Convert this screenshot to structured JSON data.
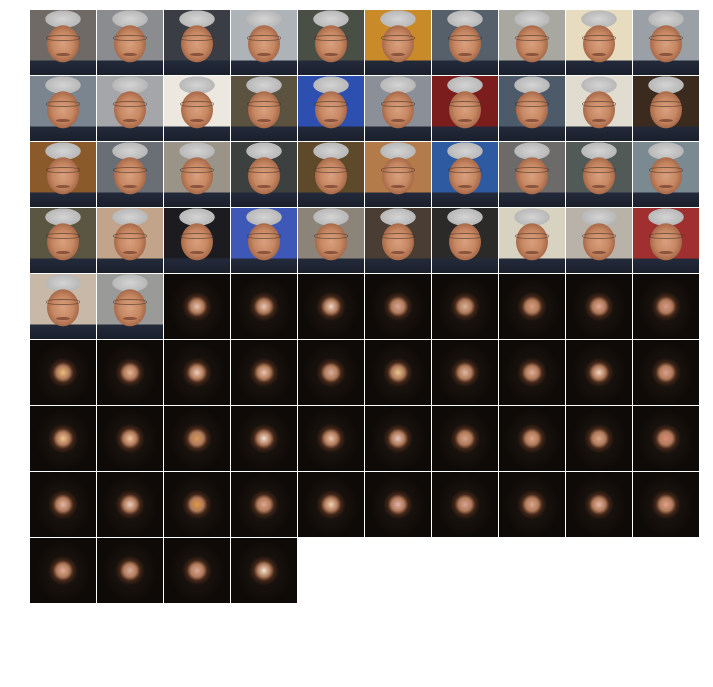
{
  "mosaic": {
    "columns": 10,
    "rows": [
      [
        {
          "kind": "face",
          "bg": "#6f6a66"
        },
        {
          "kind": "face",
          "bg": "#8a8c8f"
        },
        {
          "kind": "face",
          "bg": "#3a3d44"
        },
        {
          "kind": "face",
          "bg": "#aeb3b8"
        },
        {
          "kind": "face",
          "bg": "#4a4f45"
        },
        {
          "kind": "face",
          "bg": "#c98a2a"
        },
        {
          "kind": "face",
          "bg": "#56606a"
        },
        {
          "kind": "face",
          "bg": "#a8a7a0"
        },
        {
          "kind": "face",
          "bg": "#e8dcc0"
        },
        {
          "kind": "face",
          "bg": "#9aa0a6"
        }
      ],
      [
        {
          "kind": "face",
          "bg": "#7a8590"
        },
        {
          "kind": "face",
          "bg": "#a4a6aa"
        },
        {
          "kind": "face",
          "bg": "#ece8e0"
        },
        {
          "kind": "face",
          "bg": "#5b5340"
        },
        {
          "kind": "face",
          "bg": "#2d4fb0"
        },
        {
          "kind": "face",
          "bg": "#8b8f98"
        },
        {
          "kind": "face",
          "bg": "#7b1d1d"
        },
        {
          "kind": "face",
          "bg": "#4d5a6a"
        },
        {
          "kind": "face",
          "bg": "#e0dccf"
        },
        {
          "kind": "face",
          "bg": "#3b2a1e"
        }
      ],
      [
        {
          "kind": "face",
          "bg": "#8a5a2a"
        },
        {
          "kind": "face",
          "bg": "#6a6e75"
        },
        {
          "kind": "face",
          "bg": "#9a9488"
        },
        {
          "kind": "face",
          "bg": "#3c403f"
        },
        {
          "kind": "face",
          "bg": "#5e4a2a"
        },
        {
          "kind": "face",
          "bg": "#b37a4a"
        },
        {
          "kind": "face",
          "bg": "#2d5aa0"
        },
        {
          "kind": "face",
          "bg": "#6d6a6a"
        },
        {
          "kind": "face",
          "bg": "#525a58"
        },
        {
          "kind": "face",
          "bg": "#7a8a90"
        }
      ],
      [
        {
          "kind": "face",
          "bg": "#5a5642"
        },
        {
          "kind": "face",
          "bg": "#c2a48a"
        },
        {
          "kind": "face",
          "bg": "#1c1c20"
        },
        {
          "kind": "face",
          "bg": "#3e58b8"
        },
        {
          "kind": "face",
          "bg": "#8c8478"
        },
        {
          "kind": "face",
          "bg": "#4a3e34"
        },
        {
          "kind": "face",
          "bg": "#2c2a28"
        },
        {
          "kind": "face",
          "bg": "#d8d2c0"
        },
        {
          "kind": "face",
          "bg": "#b9b2a8"
        },
        {
          "kind": "face",
          "bg": "#a03030"
        }
      ],
      [
        {
          "kind": "face",
          "bg": "#c8b8a8"
        },
        {
          "kind": "face",
          "bg": "#9a9a98"
        },
        {
          "kind": "dark",
          "glow": "#e6c2b0"
        },
        {
          "kind": "dark",
          "glow": "#e8c8b6"
        },
        {
          "kind": "dark",
          "glow": "#f0d8c8"
        },
        {
          "kind": "dark",
          "glow": "#d8a896"
        },
        {
          "kind": "dark",
          "glow": "#d9b39c"
        },
        {
          "kind": "dark",
          "glow": "#d9a080"
        },
        {
          "kind": "dark",
          "glow": "#e0a898"
        },
        {
          "kind": "dark",
          "glow": "#d89c8c"
        }
      ],
      [
        {
          "kind": "dark",
          "glow": "#e8c07a"
        },
        {
          "kind": "dark",
          "glow": "#e6b898"
        },
        {
          "kind": "dark",
          "glow": "#f0d0c0"
        },
        {
          "kind": "dark",
          "glow": "#eec4b0"
        },
        {
          "kind": "dark",
          "glow": "#d8b0a0"
        },
        {
          "kind": "dark",
          "glow": "#e8c890"
        },
        {
          "kind": "dark",
          "glow": "#e0b8a4"
        },
        {
          "kind": "dark",
          "glow": "#e0b098"
        },
        {
          "kind": "dark",
          "glow": "#f0d4c4"
        },
        {
          "kind": "dark",
          "glow": "#dca090"
        }
      ],
      [
        {
          "kind": "dark",
          "glow": "#f0c890"
        },
        {
          "kind": "dark",
          "glow": "#f0c8a0"
        },
        {
          "kind": "dark",
          "glow": "#d89a5a"
        },
        {
          "kind": "dark",
          "glow": "#f4e4dc"
        },
        {
          "kind": "dark",
          "glow": "#eac8b0"
        },
        {
          "kind": "dark",
          "glow": "#e8c8c0"
        },
        {
          "kind": "dark",
          "glow": "#d6a48a"
        },
        {
          "kind": "dark",
          "glow": "#dca888"
        },
        {
          "kind": "dark",
          "glow": "#d8a890"
        },
        {
          "kind": "dark",
          "glow": "#dc8c7a"
        }
      ],
      [
        {
          "kind": "dark",
          "glow": "#e4b8a8"
        },
        {
          "kind": "dark",
          "glow": "#ecd0c0"
        },
        {
          "kind": "dark",
          "glow": "#e09a40"
        },
        {
          "kind": "dark",
          "glow": "#e0a890"
        },
        {
          "kind": "dark",
          "glow": "#f0d4b8"
        },
        {
          "kind": "dark",
          "glow": "#e4b4b0"
        },
        {
          "kind": "dark",
          "glow": "#d8a494"
        },
        {
          "kind": "dark",
          "glow": "#d8a890"
        },
        {
          "kind": "dark",
          "glow": "#e8b8a8"
        },
        {
          "kind": "dark",
          "glow": "#e4a48c"
        }
      ],
      [
        {
          "kind": "dark",
          "glow": "#e0b09a"
        },
        {
          "kind": "dark",
          "glow": "#d8b09c"
        },
        {
          "kind": "dark",
          "glow": "#dca898"
        },
        {
          "kind": "dark",
          "glow": "#f4e8d8"
        }
      ]
    ]
  }
}
